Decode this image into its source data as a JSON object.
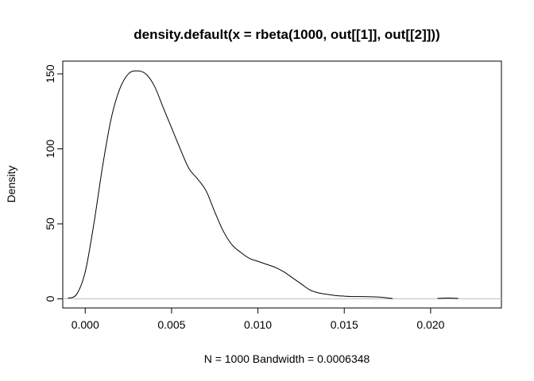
{
  "chart_data": {
    "type": "line",
    "title": "density.default(x = rbeta(1000, out[[1]], out[[2]]))",
    "xlabel": "N = 1000   Bandwidth = 0.0006348",
    "ylabel": "Density",
    "xlim": [
      -0.0013,
      0.0241
    ],
    "ylim": [
      -6.1,
      158.5
    ],
    "x_ticks": [
      0.0,
      0.005,
      0.01,
      0.015,
      0.02
    ],
    "x_tick_labels": [
      "0.000",
      "0.005",
      "0.010",
      "0.015",
      "0.020"
    ],
    "y_ticks": [
      0,
      50,
      100,
      150
    ],
    "y_tick_labels": [
      "0",
      "50",
      "100",
      "150"
    ],
    "grid": false,
    "baseline": {
      "y": 0,
      "color": "#bebebe"
    },
    "line_color": "#000000",
    "series": [
      {
        "x": [
          -0.001,
          -0.0005,
          0.0,
          0.0005,
          0.001,
          0.0015,
          0.002,
          0.0025,
          0.003,
          0.0035,
          0.004,
          0.0045,
          0.005,
          0.0055,
          0.006,
          0.0065,
          0.007,
          0.0075,
          0.008,
          0.0085,
          0.009,
          0.0095,
          0.01,
          0.0105,
          0.011,
          0.0115,
          0.012,
          0.0125,
          0.013,
          0.0135,
          0.014,
          0.0145,
          0.015,
          0.0155,
          0.016,
          0.0165,
          0.017,
          0.0175,
          0.0178
        ],
        "y": [
          0.5,
          3,
          18,
          50,
          88,
          120,
          140,
          150,
          152,
          150,
          142,
          128,
          114,
          100,
          87,
          80,
          72,
          58,
          45,
          36,
          31,
          27,
          25,
          23,
          21,
          18,
          14,
          10,
          6,
          4,
          3,
          2.2,
          1.8,
          1.5,
          1.5,
          1.4,
          1.2,
          0.6,
          0.2
        ]
      },
      {
        "x": [
          0.0204,
          0.021,
          0.0216
        ],
        "y": [
          0.3,
          0.5,
          0.3
        ]
      }
    ]
  }
}
